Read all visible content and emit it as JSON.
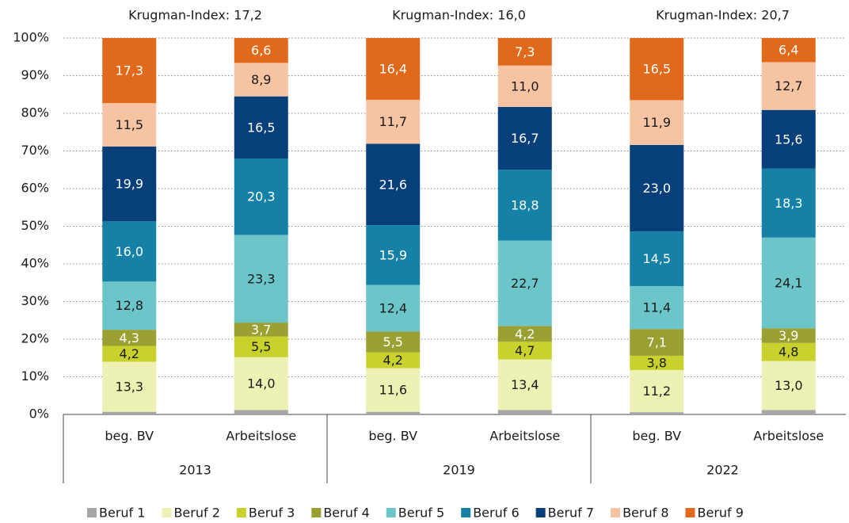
{
  "chart_data": {
    "type": "stacked_bar",
    "groups": [
      "2013",
      "2019",
      "2022"
    ],
    "annotations": [
      "Krugman-Index: 17,2",
      "Krugman-Index: 16,0",
      "Krugman-Index: 20,7"
    ],
    "categories": [
      "beg. BV",
      "Arbeitslose",
      "beg. BV",
      "Arbeitslose",
      "beg. BV",
      "Arbeitslose"
    ],
    "ylim": [
      0,
      100
    ],
    "yticks": [
      {
        "value": 0,
        "label": "0%"
      },
      {
        "value": 10,
        "label": "10%"
      },
      {
        "value": 20,
        "label": "20%"
      },
      {
        "value": 30,
        "label": "30%"
      },
      {
        "value": 40,
        "label": "40%"
      },
      {
        "value": 50,
        "label": "50%"
      },
      {
        "value": 60,
        "label": "60%"
      },
      {
        "value": 70,
        "label": "70%"
      },
      {
        "value": 80,
        "label": "80%"
      },
      {
        "value": 90,
        "label": "90%"
      },
      {
        "value": 100,
        "label": "100%"
      }
    ],
    "grid": true,
    "legend": "bottom",
    "series": [
      {
        "name": "Beruf 1",
        "color": "#a6a6a6",
        "values": [
          0.7,
          1.2,
          0.7,
          1.2,
          0.6,
          1.2
        ]
      },
      {
        "name": "Beruf 2",
        "color": "#eef1b4",
        "values": [
          13.3,
          14.0,
          11.6,
          13.4,
          11.2,
          13.0
        ],
        "value_labels": [
          "13,3",
          "14,0",
          "11,6",
          "13,4",
          "11,2",
          "13,0"
        ]
      },
      {
        "name": "Beruf 3",
        "color": "#c9d22c",
        "values": [
          4.2,
          5.5,
          4.2,
          4.7,
          3.8,
          4.8
        ],
        "value_labels": [
          "4,2",
          "5,5",
          "4,2",
          "4,7",
          "3,8",
          "4,8"
        ]
      },
      {
        "name": "Beruf 4",
        "color": "#9aa032",
        "values": [
          4.3,
          3.7,
          5.5,
          4.2,
          7.1,
          3.9
        ],
        "value_labels": [
          "4,3",
          "3,7",
          "5,5",
          "4,2",
          "7,1",
          "3,9"
        ]
      },
      {
        "name": "Beruf 5",
        "color": "#6cc6c9",
        "values": [
          12.8,
          23.3,
          12.4,
          22.7,
          11.4,
          24.1
        ],
        "value_labels": [
          "12,8",
          "23,3",
          "12,4",
          "22,7",
          "11,4",
          "24,1"
        ]
      },
      {
        "name": "Beruf 6",
        "color": "#1581a7",
        "values": [
          16.0,
          20.3,
          15.9,
          18.8,
          14.5,
          18.3
        ],
        "value_labels": [
          "16,0",
          "20,3",
          "15,9",
          "18,8",
          "14,5",
          "18,3"
        ]
      },
      {
        "name": "Beruf 7",
        "color": "#073f7b",
        "values": [
          19.9,
          16.5,
          21.6,
          16.7,
          23.0,
          15.6
        ],
        "value_labels": [
          "19,9",
          "16,5",
          "21,6",
          "16,7",
          "23,0",
          "15,6"
        ]
      },
      {
        "name": "Beruf 8",
        "color": "#f6c3a3",
        "values": [
          11.5,
          8.9,
          11.7,
          11.0,
          11.9,
          12.7
        ],
        "value_labels": [
          "11,5",
          "8,9",
          "11,7",
          "11,0",
          "11,9",
          "12,7"
        ]
      },
      {
        "name": "Beruf 9",
        "color": "#e0691b",
        "values": [
          17.3,
          6.6,
          16.4,
          7.3,
          16.5,
          6.4
        ],
        "value_labels": [
          "17,3",
          "6,6",
          "16,4",
          "7,3",
          "16,5",
          "6,4"
        ]
      }
    ]
  }
}
